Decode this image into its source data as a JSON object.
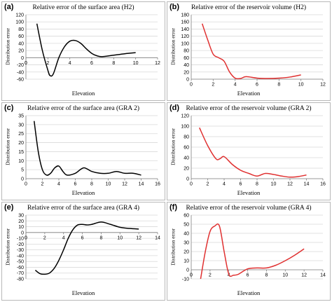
{
  "axis_labels": {
    "x": "Elevation",
    "y": "Distribution  error"
  },
  "chart_data": [
    {
      "id": "a",
      "label": "(a)",
      "type": "line",
      "title": "Relative  error  of the surface area  (H2)",
      "color": "#000000",
      "xlim": [
        0,
        12
      ],
      "xticks": [
        0,
        2,
        4,
        6,
        8,
        10,
        12
      ],
      "ylim": [
        -60,
        120
      ],
      "yticks": [
        -60,
        -40,
        -20,
        0,
        20,
        40,
        60,
        80,
        100,
        120
      ],
      "x": [
        1,
        1.5,
        2,
        2.2,
        2.5,
        3,
        3.5,
        4,
        4.5,
        5,
        5.5,
        6,
        6.5,
        7,
        8,
        9,
        10
      ],
      "y": [
        95,
        20,
        -35,
        -50,
        -45,
        0,
        30,
        46,
        48,
        40,
        25,
        12,
        5,
        3,
        7,
        11,
        14
      ]
    },
    {
      "id": "b",
      "label": "(b)",
      "type": "line",
      "title": "Relative  error  of the reservoir volume  (H2)",
      "color": "#e03030",
      "xlim": [
        0,
        12
      ],
      "xticks": [
        0,
        2,
        4,
        6,
        8,
        10,
        12
      ],
      "ylim": [
        0,
        180
      ],
      "yticks": [
        0,
        20,
        40,
        60,
        80,
        100,
        120,
        140,
        160,
        180
      ],
      "x": [
        1,
        1.5,
        2,
        2.5,
        3,
        3.5,
        4,
        4.5,
        5,
        6,
        7,
        8,
        9,
        10
      ],
      "y": [
        155,
        110,
        70,
        60,
        50,
        20,
        3,
        2,
        7,
        3,
        2,
        3,
        6,
        12
      ]
    },
    {
      "id": "c",
      "label": "(c)",
      "type": "line",
      "title": "Relative  error  of the surface area  (GRA 2)",
      "color": "#000000",
      "xlim": [
        0,
        16
      ],
      "xticks": [
        0,
        2,
        4,
        6,
        8,
        10,
        12,
        14,
        16
      ],
      "ylim": [
        0,
        35
      ],
      "yticks": [
        0,
        5,
        10,
        15,
        20,
        25,
        30,
        35
      ],
      "x": [
        1,
        1.5,
        2,
        2.5,
        3,
        3.5,
        4,
        4.5,
        5,
        6,
        7,
        8,
        9,
        10,
        11,
        12,
        13,
        14
      ],
      "y": [
        32,
        15,
        5,
        2,
        3,
        6,
        7,
        4,
        2,
        3,
        6,
        4,
        3,
        3,
        4,
        3,
        3,
        2
      ]
    },
    {
      "id": "d",
      "label": "(d)",
      "type": "line",
      "title": "Relative  error  of the reservoir volume  (GRA 2)",
      "color": "#e03030",
      "xlim": [
        0,
        16
      ],
      "xticks": [
        0,
        2,
        4,
        6,
        8,
        10,
        12,
        14,
        16
      ],
      "ylim": [
        0,
        120
      ],
      "yticks": [
        0,
        20,
        40,
        60,
        80,
        100,
        120
      ],
      "x": [
        1,
        2,
        3,
        3.5,
        4,
        5,
        6,
        7,
        8,
        9,
        10,
        11,
        12,
        13,
        14
      ],
      "y": [
        97,
        63,
        38,
        38,
        42,
        27,
        16,
        10,
        5,
        10,
        8,
        5,
        3,
        4,
        7
      ]
    },
    {
      "id": "e",
      "label": "(e)",
      "type": "line",
      "title": "Relative  error  of the surface area  (GRA 4)",
      "color": "#000000",
      "xlim": [
        0,
        14
      ],
      "xticks": [
        0,
        2,
        4,
        6,
        8,
        10,
        12,
        14
      ],
      "ylim": [
        -80,
        30
      ],
      "yticks": [
        -80,
        -70,
        -60,
        -50,
        -40,
        -30,
        -20,
        -10,
        0,
        10,
        20,
        30
      ],
      "x": [
        1,
        1.5,
        2,
        2.5,
        3,
        3.5,
        4,
        4.5,
        5,
        5.5,
        6,
        6.5,
        7,
        8,
        9,
        10,
        11,
        12
      ],
      "y": [
        -65,
        -71,
        -72,
        -70,
        -62,
        -48,
        -30,
        -10,
        5,
        13,
        14,
        13,
        14,
        18,
        14,
        9,
        7,
        6
      ]
    },
    {
      "id": "f",
      "label": "(f)",
      "type": "line",
      "title": "Relative  error  of the reservoir volume  (GRA 4)",
      "color": "#e03030",
      "xlim": [
        0,
        14
      ],
      "xticks": [
        0,
        2,
        4,
        6,
        8,
        10,
        12,
        14
      ],
      "ylim": [
        -10,
        60
      ],
      "yticks": [
        -10,
        0,
        10,
        20,
        30,
        40,
        50,
        60
      ],
      "x": [
        1,
        1.5,
        2,
        2.5,
        3,
        3.5,
        4,
        4.5,
        5,
        6,
        7,
        8,
        9,
        10,
        11,
        12
      ],
      "y": [
        -10,
        20,
        42,
        48,
        48,
        20,
        -5,
        -6,
        -5,
        1,
        2,
        2,
        5,
        10,
        16,
        23
      ]
    }
  ]
}
